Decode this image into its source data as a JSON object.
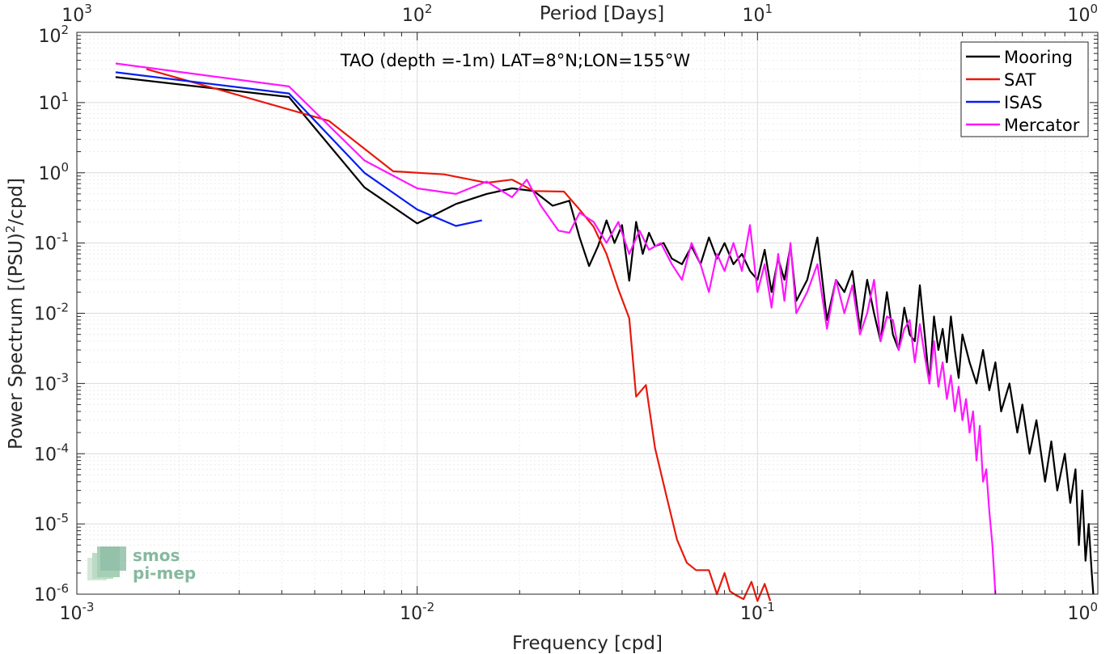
{
  "chart_data": {
    "type": "line",
    "title": "TAO (depth =-1m) LAT=8°N;LON=155°W",
    "xlabel": "Frequency [cpd]",
    "ylabel": "Power Spectrum [(PSU)²/cpd]",
    "ylabel_main": "Power Spectrum [(PSU)",
    "ylabel_sup": "2",
    "ylabel_tail": "/cpd]",
    "top_xlabel": "Period [Days]",
    "xscale": "log",
    "yscale": "log",
    "xlim": [
      0.001,
      1
    ],
    "ylim": [
      1e-06,
      100
    ],
    "grid": true,
    "legend_position": "top-right",
    "x_ticks": [
      {
        "base": "10",
        "exp": "-3"
      },
      {
        "base": "10",
        "exp": "-2"
      },
      {
        "base": "10",
        "exp": "-1"
      },
      {
        "base": "10",
        "exp": "0"
      }
    ],
    "y_ticks": [
      {
        "base": "10",
        "exp": "-6"
      },
      {
        "base": "10",
        "exp": "-5"
      },
      {
        "base": "10",
        "exp": "-4"
      },
      {
        "base": "10",
        "exp": "-3"
      },
      {
        "base": "10",
        "exp": "-2"
      },
      {
        "base": "10",
        "exp": "-1"
      },
      {
        "base": "10",
        "exp": "0"
      },
      {
        "base": "10",
        "exp": "1"
      },
      {
        "base": "10",
        "exp": "2"
      }
    ],
    "top_ticks": [
      {
        "base": "10",
        "exp": "3"
      },
      {
        "base": "10",
        "exp": "2"
      },
      {
        "base": "10",
        "exp": "1"
      },
      {
        "base": "10",
        "exp": "0"
      }
    ],
    "series": [
      {
        "name": "Mooring",
        "color": "#000000",
        "x": [
          0.0013,
          0.0042,
          0.007,
          0.01,
          0.013,
          0.016,
          0.019,
          0.022,
          0.025,
          0.028,
          0.03,
          0.032,
          0.034,
          0.036,
          0.038,
          0.04,
          0.042,
          0.044,
          0.046,
          0.048,
          0.05,
          0.053,
          0.056,
          0.06,
          0.064,
          0.068,
          0.072,
          0.076,
          0.08,
          0.085,
          0.09,
          0.095,
          0.1,
          0.105,
          0.11,
          0.115,
          0.12,
          0.125,
          0.13,
          0.14,
          0.15,
          0.16,
          0.17,
          0.18,
          0.19,
          0.2,
          0.21,
          0.22,
          0.23,
          0.24,
          0.25,
          0.26,
          0.27,
          0.28,
          0.29,
          0.3,
          0.31,
          0.32,
          0.33,
          0.34,
          0.35,
          0.36,
          0.37,
          0.38,
          0.39,
          0.4,
          0.42,
          0.44,
          0.46,
          0.48,
          0.5,
          0.52,
          0.55,
          0.58,
          0.6,
          0.63,
          0.66,
          0.7,
          0.73,
          0.76,
          0.8,
          0.83,
          0.86,
          0.88,
          0.9,
          0.92,
          0.94,
          0.96,
          0.97
        ],
        "y": [
          23,
          12,
          0.62,
          0.19,
          0.36,
          0.5,
          0.6,
          0.55,
          0.34,
          0.4,
          0.12,
          0.047,
          0.09,
          0.21,
          0.1,
          0.18,
          0.029,
          0.2,
          0.07,
          0.14,
          0.09,
          0.1,
          0.06,
          0.05,
          0.09,
          0.05,
          0.12,
          0.06,
          0.1,
          0.05,
          0.07,
          0.04,
          0.03,
          0.08,
          0.02,
          0.06,
          0.03,
          0.09,
          0.015,
          0.03,
          0.12,
          0.008,
          0.03,
          0.02,
          0.04,
          0.006,
          0.03,
          0.01,
          0.004,
          0.02,
          0.005,
          0.003,
          0.012,
          0.005,
          0.004,
          0.025,
          0.005,
          0.001,
          0.009,
          0.003,
          0.006,
          0.002,
          0.009,
          0.003,
          0.0012,
          0.005,
          0.002,
          0.001,
          0.003,
          0.0008,
          0.002,
          0.0004,
          0.001,
          0.0002,
          0.0005,
          0.0001,
          0.0003,
          4e-05,
          0.00015,
          3e-05,
          0.0001,
          2e-05,
          6e-05,
          5e-06,
          3e-05,
          3e-06,
          1e-05,
          2e-06,
          1e-06
        ]
      },
      {
        "name": "SAT",
        "color": "#e8190c",
        "x": [
          0.0016,
          0.0055,
          0.0085,
          0.012,
          0.016,
          0.019,
          0.022,
          0.027,
          0.03,
          0.033,
          0.036,
          0.039,
          0.042,
          0.044,
          0.047,
          0.05,
          0.054,
          0.058,
          0.062,
          0.066,
          0.072,
          0.076,
          0.08,
          0.083,
          0.087,
          0.091,
          0.096,
          0.1,
          0.105,
          0.109
        ],
        "y": [
          30,
          5.5,
          1.05,
          0.95,
          0.72,
          0.8,
          0.55,
          0.54,
          0.3,
          0.17,
          0.07,
          0.022,
          0.0085,
          0.00065,
          0.00095,
          0.00012,
          2.5e-05,
          6e-06,
          2.8e-06,
          2.2e-06,
          2.2e-06,
          1e-06,
          2e-06,
          1.1e-06,
          9.5e-07,
          8.5e-07,
          1.5e-06,
          8e-07,
          1.4e-06,
          8e-07
        ]
      },
      {
        "name": "ISAS",
        "color": "#0a1ef0",
        "x": [
          0.0013,
          0.0042,
          0.007,
          0.01,
          0.013,
          0.0155
        ],
        "y": [
          27,
          13.5,
          1.0,
          0.3,
          0.175,
          0.21
        ]
      },
      {
        "name": "Mercator",
        "color": "#ff17ff",
        "x": [
          0.0013,
          0.0042,
          0.007,
          0.01,
          0.013,
          0.016,
          0.019,
          0.021,
          0.023,
          0.026,
          0.028,
          0.03,
          0.033,
          0.036,
          0.039,
          0.042,
          0.045,
          0.048,
          0.052,
          0.056,
          0.06,
          0.064,
          0.068,
          0.072,
          0.076,
          0.08,
          0.085,
          0.09,
          0.095,
          0.1,
          0.105,
          0.11,
          0.115,
          0.12,
          0.125,
          0.13,
          0.14,
          0.15,
          0.16,
          0.17,
          0.18,
          0.19,
          0.2,
          0.21,
          0.22,
          0.23,
          0.24,
          0.25,
          0.26,
          0.27,
          0.28,
          0.29,
          0.3,
          0.31,
          0.32,
          0.33,
          0.34,
          0.35,
          0.36,
          0.37,
          0.38,
          0.39,
          0.4,
          0.41,
          0.42,
          0.43,
          0.44,
          0.45,
          0.46,
          0.47,
          0.48,
          0.49,
          0.5
        ],
        "y": [
          36,
          17,
          1.5,
          0.6,
          0.5,
          0.75,
          0.45,
          0.8,
          0.35,
          0.15,
          0.14,
          0.27,
          0.2,
          0.1,
          0.2,
          0.07,
          0.15,
          0.08,
          0.1,
          0.05,
          0.03,
          0.1,
          0.05,
          0.02,
          0.07,
          0.04,
          0.1,
          0.04,
          0.18,
          0.02,
          0.05,
          0.012,
          0.07,
          0.015,
          0.1,
          0.01,
          0.02,
          0.05,
          0.006,
          0.03,
          0.01,
          0.025,
          0.005,
          0.01,
          0.03,
          0.004,
          0.009,
          0.008,
          0.003,
          0.006,
          0.008,
          0.002,
          0.007,
          0.0025,
          0.001,
          0.004,
          0.0009,
          0.002,
          0.0006,
          0.0013,
          0.0004,
          0.0009,
          0.0003,
          0.0006,
          0.0002,
          0.0004,
          8e-05,
          0.00025,
          4e-05,
          6e-05,
          1.5e-05,
          5e-06,
          1e-06
        ]
      }
    ]
  },
  "watermark": {
    "line1": "smos",
    "line2": "pi-mep",
    "color": "#86b99f"
  }
}
